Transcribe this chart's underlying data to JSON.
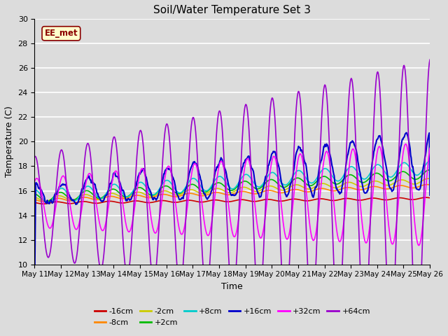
{
  "title": "Soil/Water Temperature Set 3",
  "xlabel": "Time",
  "ylabel": "Temperature (C)",
  "ylim": [
    10,
    30
  ],
  "background_color": "#dcdcdc",
  "watermark": "EE_met",
  "series": {
    "-16cm": {
      "color": "#cc0000",
      "lw": 1.2
    },
    "-8cm": {
      "color": "#ff8800",
      "lw": 1.2
    },
    "-2cm": {
      "color": "#cccc00",
      "lw": 1.2
    },
    "+2cm": {
      "color": "#00bb00",
      "lw": 1.2
    },
    "+8cm": {
      "color": "#00cccc",
      "lw": 1.2
    },
    "+16cm": {
      "color": "#0000cc",
      "lw": 1.5
    },
    "+32cm": {
      "color": "#ff00ff",
      "lw": 1.2
    },
    "+64cm": {
      "color": "#9900cc",
      "lw": 1.2
    }
  },
  "xtick_labels": [
    "May 11",
    "May 12",
    "May 13",
    "May 14",
    "May 15",
    "May 16",
    "May 17",
    "May 18",
    "May 19",
    "May 20",
    "May 21",
    "May 22",
    "May 23",
    "May 24",
    "May 25",
    "May 26"
  ],
  "ytick_values": [
    10,
    12,
    14,
    16,
    18,
    20,
    22,
    24,
    26,
    28,
    30
  ]
}
